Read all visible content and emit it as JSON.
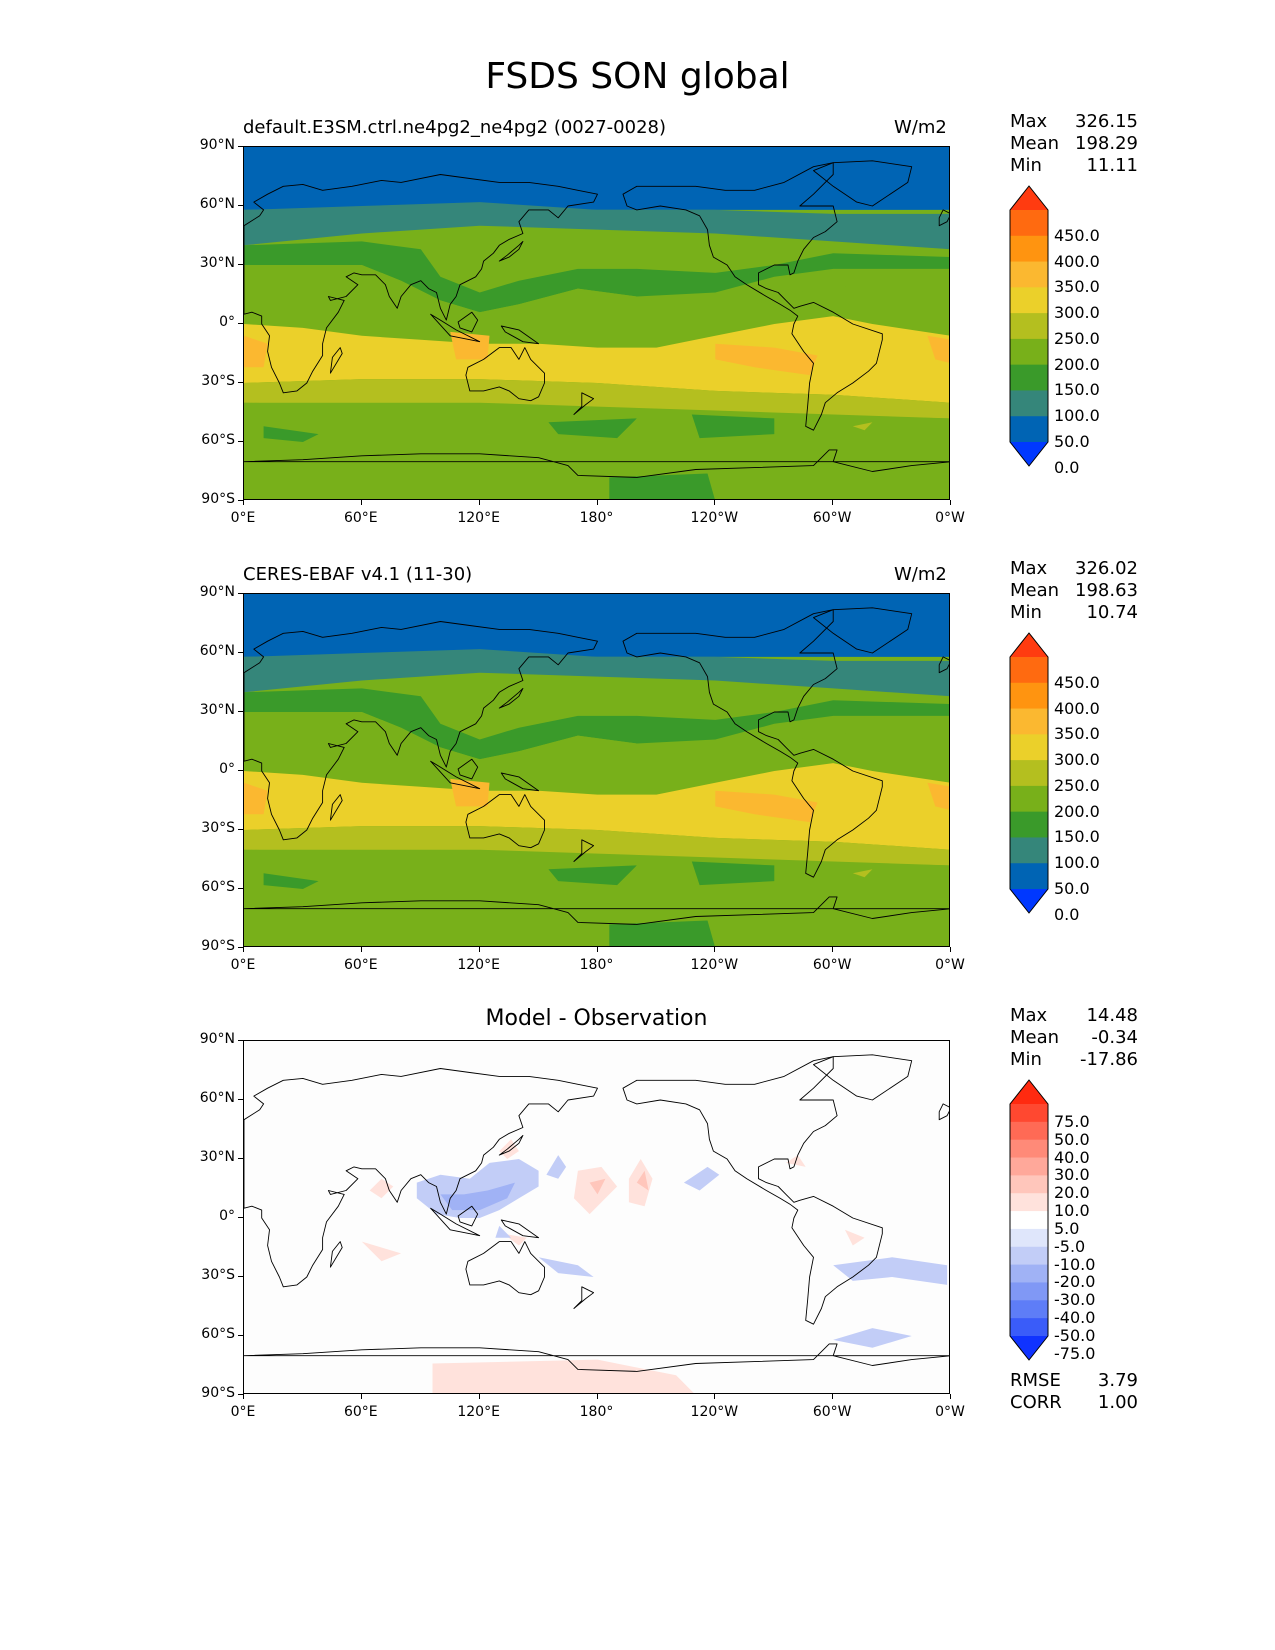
{
  "title": "FSDS SON global",
  "panels": [
    {
      "id": "model",
      "title": "default.E3SM.ctrl.ne4pg2_ne4pg2 (0027-0028)",
      "units": "W/m2",
      "stats": [
        {
          "label": "Max",
          "value": "326.15"
        },
        {
          "label": "Mean",
          "value": "198.29"
        },
        {
          "label": "Min",
          "value": "11.11"
        }
      ],
      "colorbar": {
        "levels": [
          "450.0",
          "400.0",
          "350.0",
          "300.0",
          "250.0",
          "200.0",
          "150.0",
          "100.0",
          "50.0",
          "0.0"
        ],
        "colors": [
          "#ff3b10",
          "#ff6a10",
          "#ff9410",
          "#fbb830",
          "#ebd02a",
          "#b4bf1f",
          "#78b01a",
          "#3a9a2a",
          "#35867a",
          "#0064b4",
          "#0038ff"
        ]
      }
    },
    {
      "id": "obs",
      "title": "CERES-EBAF v4.1 (11-30)",
      "units": "W/m2",
      "stats": [
        {
          "label": "Max",
          "value": "326.02"
        },
        {
          "label": "Mean",
          "value": "198.63"
        },
        {
          "label": "Min",
          "value": "10.74"
        }
      ],
      "colorbar": {
        "levels": [
          "450.0",
          "400.0",
          "350.0",
          "300.0",
          "250.0",
          "200.0",
          "150.0",
          "100.0",
          "50.0",
          "0.0"
        ],
        "colors": [
          "#ff3b10",
          "#ff6a10",
          "#ff9410",
          "#fbb830",
          "#ebd02a",
          "#b4bf1f",
          "#78b01a",
          "#3a9a2a",
          "#35867a",
          "#0064b4",
          "#0038ff"
        ]
      }
    },
    {
      "id": "diff",
      "title": "Model - Observation",
      "units": "",
      "stats": [
        {
          "label": "Max",
          "value": "14.48"
        },
        {
          "label": "Mean",
          "value": "-0.34"
        },
        {
          "label": "Min",
          "value": "-17.86"
        }
      ],
      "extra_stats": [
        {
          "label": "RMSE",
          "value": "3.79"
        },
        {
          "label": "CORR",
          "value": "1.00"
        }
      ],
      "colorbar": {
        "levels": [
          "75.0",
          "50.0",
          "40.0",
          "30.0",
          "20.0",
          "10.0",
          "5.0",
          "-5.0",
          "-10.0",
          "-20.0",
          "-30.0",
          "-40.0",
          "-50.0",
          "-75.0"
        ],
        "colors": [
          "#ff2a10",
          "#ff4830",
          "#ff6a55",
          "#ff8a78",
          "#ffa89a",
          "#ffc6bb",
          "#ffe2dc",
          "#ffffff",
          "#dfe6fb",
          "#c2cdf7",
          "#a0b2f5",
          "#8098f5",
          "#5e7df7",
          "#3a5cf9",
          "#1033ff"
        ]
      }
    }
  ],
  "axes": {
    "lat_ticks": [
      "90°N",
      "60°N",
      "30°N",
      "0°",
      "30°S",
      "60°S",
      "90°S"
    ],
    "lon_ticks": [
      "0°E",
      "60°E",
      "120°E",
      "180°",
      "120°W",
      "60°W",
      "0°W"
    ]
  },
  "colors": {
    "land_outline": "#000000",
    "diff_background": "#fdfdfd"
  }
}
